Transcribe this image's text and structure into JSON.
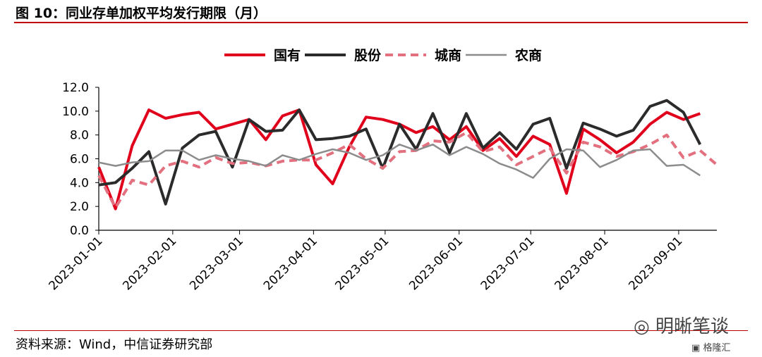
{
  "header": {
    "figure_title": "图 10：同业存单加权平均发行期限（月）"
  },
  "footer": {
    "source": "资料来源：Wind，中信证券研究部",
    "watermark": "明晰笔谈",
    "watermark_logo": "格隆汇"
  },
  "colors": {
    "国有": "#e0001b",
    "股份": "#2b2b2b",
    "城商": "#e3707e",
    "农商": "#8c8c8c",
    "rule": "#c00000"
  },
  "chart_data": {
    "type": "line",
    "title": "",
    "xlabel": "",
    "ylabel": "",
    "ylim": [
      0,
      12
    ],
    "yticks": [
      "0.0",
      "2.0",
      "4.0",
      "6.0",
      "8.0",
      "10.0",
      "12.0"
    ],
    "xticks": [
      "2023-01-01",
      "2023-02-01",
      "2023-03-01",
      "2023-04-01",
      "2023-05-01",
      "2023-06-01",
      "2023-07-01",
      "2023-08-01",
      "2023-09-01"
    ],
    "x": [
      "2023-01-01",
      "2023-01-08",
      "2023-01-15",
      "2023-01-22",
      "2023-01-29",
      "2023-02-05",
      "2023-02-12",
      "2023-02-19",
      "2023-02-26",
      "2023-03-05",
      "2023-03-12",
      "2023-03-19",
      "2023-03-26",
      "2023-04-02",
      "2023-04-09",
      "2023-04-16",
      "2023-04-23",
      "2023-04-30",
      "2023-05-07",
      "2023-05-14",
      "2023-05-21",
      "2023-05-28",
      "2023-06-04",
      "2023-06-11",
      "2023-06-18",
      "2023-06-25",
      "2023-07-02",
      "2023-07-09",
      "2023-07-16",
      "2023-07-23",
      "2023-07-30",
      "2023-08-06",
      "2023-08-13",
      "2023-08-20",
      "2023-08-27",
      "2023-09-03",
      "2023-09-10",
      "2023-09-17"
    ],
    "legend_position": "top",
    "grid": false,
    "series": [
      {
        "name": "国有",
        "style": "solid",
        "width": 4,
        "values": [
          5.3,
          1.8,
          7.1,
          10.1,
          9.4,
          9.7,
          9.9,
          8.5,
          8.9,
          9.3,
          7.6,
          9.6,
          10.1,
          5.5,
          3.9,
          7.0,
          9.5,
          9.3,
          8.9,
          8.2,
          8.7,
          7.6,
          8.7,
          6.7,
          7.7,
          6.2,
          7.9,
          7.2,
          3.1,
          8.5,
          7.6,
          6.5,
          7.4,
          8.9,
          9.9,
          9.3,
          9.8,
          null
        ]
      },
      {
        "name": "股份",
        "style": "solid",
        "width": 4,
        "values": [
          3.8,
          4.0,
          5.2,
          6.6,
          2.2,
          6.9,
          8.0,
          8.3,
          5.3,
          9.3,
          8.3,
          8.4,
          10.1,
          7.6,
          7.7,
          7.9,
          8.5,
          5.2,
          8.9,
          6.8,
          9.8,
          6.5,
          9.8,
          6.9,
          8.2,
          6.8,
          8.9,
          9.4,
          5.2,
          9.0,
          8.5,
          7.9,
          8.4,
          10.4,
          10.9,
          9.9,
          7.2,
          null
        ]
      },
      {
        "name": "城商",
        "style": "dashed",
        "width": 4,
        "values": [
          4.6,
          1.9,
          4.2,
          3.8,
          5.4,
          5.8,
          5.3,
          6.1,
          5.6,
          5.7,
          5.4,
          5.8,
          5.9,
          5.9,
          6.5,
          7.2,
          6.0,
          5.2,
          6.6,
          6.7,
          7.5,
          7.4,
          8.2,
          6.6,
          7.0,
          5.5,
          6.2,
          6.9,
          4.8,
          7.4,
          7.0,
          6.2,
          6.6,
          7.2,
          8.0,
          6.1,
          6.7,
          5.5
        ]
      },
      {
        "name": "农商",
        "style": "solid",
        "width": 2.5,
        "values": [
          5.7,
          5.4,
          5.7,
          5.8,
          6.7,
          6.7,
          5.9,
          6.3,
          6.0,
          5.8,
          5.4,
          6.3,
          5.9,
          6.4,
          6.8,
          6.5,
          5.9,
          6.3,
          7.2,
          6.7,
          7.2,
          6.3,
          7.0,
          6.4,
          5.6,
          5.1,
          4.4,
          6.0,
          6.8,
          6.7,
          5.3,
          5.9,
          6.7,
          6.8,
          5.4,
          5.5,
          4.6,
          null
        ]
      }
    ]
  }
}
